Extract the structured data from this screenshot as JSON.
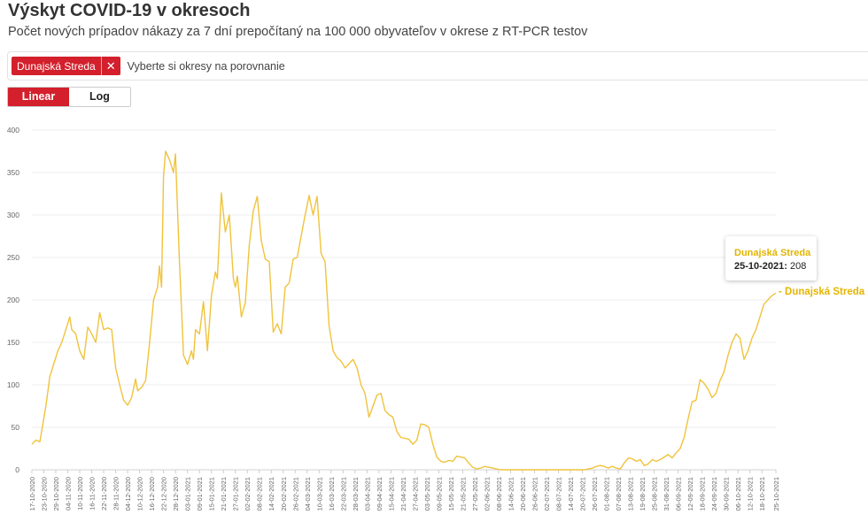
{
  "header": {
    "title": "Výskyt COVID-19 v okresoch",
    "subtitle": "Počet nových prípadov nákazy za 7 dní prepočítaný na 100 000 obyvateľov v okrese z RT-PCR testov"
  },
  "selector": {
    "selected_district": "Dunajská Streda",
    "remove_glyph": "✕",
    "placeholder": "Vyberte si okresy na porovnanie"
  },
  "scale_toggle": {
    "linear_label": "Linear",
    "log_label": "Log",
    "active": "linear"
  },
  "tooltip": {
    "series_name": "Dunajská Streda",
    "date": "25-10-2021",
    "value_text": "208"
  },
  "series_end_label": "- Dunajská Streda",
  "colors": {
    "series_line": "#f0c33c",
    "accent_red": "#d3202c",
    "grid": "#ececec"
  },
  "chart_data": {
    "type": "line",
    "title": "Výskyt COVID-19 v okresoch",
    "y_axis": {
      "min": 0,
      "max": 400,
      "ticks": [
        0,
        50,
        100,
        150,
        200,
        250,
        300,
        350,
        400
      ]
    },
    "x_tick_labels": [
      "17-10-2020",
      "23-10-2020",
      "29-10-2020",
      "04-11-2020",
      "10-11-2020",
      "16-11-2020",
      "22-11-2020",
      "28-11-2020",
      "04-12-2020",
      "10-12-2020",
      "16-12-2020",
      "22-12-2020",
      "28-12-2020",
      "03-01-2021",
      "09-01-2021",
      "15-01-2021",
      "21-01-2021",
      "27-01-2021",
      "02-02-2021",
      "08-02-2021",
      "14-02-2021",
      "20-02-2021",
      "26-02-2021",
      "04-03-2021",
      "10-03-2021",
      "16-03-2021",
      "22-03-2021",
      "28-03-2021",
      "03-04-2021",
      "09-04-2021",
      "15-04-2021",
      "21-04-2021",
      "27-04-2021",
      "03-05-2021",
      "09-05-2021",
      "15-05-2021",
      "21-05-2021",
      "27-05-2021",
      "02-06-2021",
      "08-06-2021",
      "14-06-2021",
      "20-06-2021",
      "26-06-2021",
      "02-07-2021",
      "08-07-2021",
      "14-07-2021",
      "20-07-2021",
      "26-07-2021",
      "01-08-2021",
      "07-08-2021",
      "13-08-2021",
      "19-08-2021",
      "25-08-2021",
      "31-08-2021",
      "06-09-2021",
      "12-09-2021",
      "18-09-2021",
      "24-09-2021",
      "30-09-2021",
      "06-10-2021",
      "12-10-2021",
      "18-10-2021",
      "25-10-2021"
    ],
    "grid": true,
    "series": [
      {
        "name": "Dunajská Streda",
        "points": [
          [
            "17-10-2020",
            30
          ],
          [
            "19-10-2020",
            35
          ],
          [
            "21-10-2020",
            33
          ],
          [
            "24-10-2020",
            75
          ],
          [
            "26-10-2020",
            110
          ],
          [
            "28-10-2020",
            125
          ],
          [
            "30-10-2020",
            140
          ],
          [
            "01-11-2020",
            150
          ],
          [
            "03-11-2020",
            165
          ],
          [
            "05-11-2020",
            180
          ],
          [
            "06-11-2020",
            165
          ],
          [
            "08-11-2020",
            160
          ],
          [
            "10-11-2020",
            140
          ],
          [
            "12-11-2020",
            130
          ],
          [
            "14-11-2020",
            168
          ],
          [
            "16-11-2020",
            160
          ],
          [
            "18-11-2020",
            150
          ],
          [
            "20-11-2020",
            185
          ],
          [
            "22-11-2020",
            165
          ],
          [
            "24-11-2020",
            167
          ],
          [
            "26-11-2020",
            165
          ],
          [
            "28-11-2020",
            120
          ],
          [
            "30-11-2020",
            100
          ],
          [
            "02-12-2020",
            82
          ],
          [
            "04-12-2020",
            76
          ],
          [
            "06-12-2020",
            85
          ],
          [
            "08-12-2020",
            107
          ],
          [
            "09-12-2020",
            93
          ],
          [
            "11-12-2020",
            97
          ],
          [
            "13-12-2020",
            105
          ],
          [
            "15-12-2020",
            150
          ],
          [
            "17-12-2020",
            200
          ],
          [
            "19-12-2020",
            215
          ],
          [
            "20-12-2020",
            240
          ],
          [
            "21-12-2020",
            215
          ],
          [
            "22-12-2020",
            345
          ],
          [
            "23-12-2020",
            375
          ],
          [
            "25-12-2020",
            365
          ],
          [
            "27-12-2020",
            350
          ],
          [
            "28-12-2020",
            372
          ],
          [
            "30-12-2020",
            245
          ],
          [
            "01-01-2021",
            135
          ],
          [
            "03-01-2021",
            124
          ],
          [
            "05-01-2021",
            140
          ],
          [
            "06-01-2021",
            130
          ],
          [
            "07-01-2021",
            165
          ],
          [
            "09-01-2021",
            160
          ],
          [
            "11-01-2021",
            198
          ],
          [
            "13-01-2021",
            140
          ],
          [
            "15-01-2021",
            205
          ],
          [
            "17-01-2021",
            233
          ],
          [
            "18-01-2021",
            225
          ],
          [
            "20-01-2021",
            326
          ],
          [
            "22-01-2021",
            280
          ],
          [
            "24-01-2021",
            300
          ],
          [
            "26-01-2021",
            225
          ],
          [
            "27-01-2021",
            215
          ],
          [
            "28-01-2021",
            228
          ],
          [
            "30-01-2021",
            180
          ],
          [
            "01-02-2021",
            197
          ],
          [
            "03-02-2021",
            265
          ],
          [
            "05-02-2021",
            305
          ],
          [
            "07-02-2021",
            322
          ],
          [
            "09-02-2021",
            270
          ],
          [
            "11-02-2021",
            248
          ],
          [
            "13-02-2021",
            245
          ],
          [
            "15-02-2021",
            162
          ],
          [
            "17-02-2021",
            172
          ],
          [
            "19-02-2021",
            160
          ],
          [
            "21-02-2021",
            215
          ],
          [
            "23-02-2021",
            220
          ],
          [
            "25-02-2021",
            248
          ],
          [
            "27-02-2021",
            250
          ],
          [
            "01-03-2021",
            275
          ],
          [
            "03-03-2021",
            300
          ],
          [
            "05-03-2021",
            323
          ],
          [
            "07-03-2021",
            300
          ],
          [
            "09-03-2021",
            322
          ],
          [
            "11-03-2021",
            255
          ],
          [
            "13-03-2021",
            245
          ],
          [
            "15-03-2021",
            170
          ],
          [
            "17-03-2021",
            140
          ],
          [
            "19-03-2021",
            132
          ],
          [
            "21-03-2021",
            128
          ],
          [
            "23-03-2021",
            120
          ],
          [
            "25-03-2021",
            125
          ],
          [
            "27-03-2021",
            130
          ],
          [
            "29-03-2021",
            120
          ],
          [
            "31-03-2021",
            100
          ],
          [
            "02-04-2021",
            90
          ],
          [
            "04-04-2021",
            62
          ],
          [
            "06-04-2021",
            75
          ],
          [
            "08-04-2021",
            88
          ],
          [
            "10-04-2021",
            90
          ],
          [
            "12-04-2021",
            70
          ],
          [
            "14-04-2021",
            65
          ],
          [
            "16-04-2021",
            62
          ],
          [
            "18-04-2021",
            45
          ],
          [
            "20-04-2021",
            38
          ],
          [
            "22-04-2021",
            37
          ],
          [
            "24-04-2021",
            36
          ],
          [
            "26-04-2021",
            30
          ],
          [
            "28-04-2021",
            35
          ],
          [
            "30-04-2021",
            54
          ],
          [
            "02-05-2021",
            53
          ],
          [
            "04-05-2021",
            50
          ],
          [
            "06-05-2021",
            30
          ],
          [
            "08-05-2021",
            15
          ],
          [
            "10-05-2021",
            10
          ],
          [
            "12-05-2021",
            9
          ],
          [
            "14-05-2021",
            11
          ],
          [
            "16-05-2021",
            10
          ],
          [
            "18-05-2021",
            16
          ],
          [
            "20-05-2021",
            15
          ],
          [
            "22-05-2021",
            14
          ],
          [
            "24-05-2021",
            8
          ],
          [
            "26-05-2021",
            3
          ],
          [
            "28-05-2021",
            1
          ],
          [
            "30-05-2021",
            2
          ],
          [
            "01-06-2021",
            4
          ],
          [
            "03-06-2021",
            3
          ],
          [
            "05-06-2021",
            2
          ],
          [
            "07-06-2021",
            1
          ],
          [
            "09-06-2021",
            0
          ],
          [
            "15-06-2021",
            0
          ],
          [
            "21-06-2021",
            0
          ],
          [
            "27-06-2021",
            0
          ],
          [
            "03-07-2021",
            0
          ],
          [
            "09-07-2021",
            0
          ],
          [
            "15-07-2021",
            0
          ],
          [
            "21-07-2021",
            0
          ],
          [
            "25-07-2021",
            2
          ],
          [
            "27-07-2021",
            4
          ],
          [
            "29-07-2021",
            5
          ],
          [
            "31-07-2021",
            4
          ],
          [
            "02-08-2021",
            2
          ],
          [
            "04-08-2021",
            4
          ],
          [
            "06-08-2021",
            2
          ],
          [
            "08-08-2021",
            1
          ],
          [
            "10-08-2021",
            8
          ],
          [
            "12-08-2021",
            14
          ],
          [
            "14-08-2021",
            13
          ],
          [
            "16-08-2021",
            10
          ],
          [
            "18-08-2021",
            12
          ],
          [
            "20-08-2021",
            5
          ],
          [
            "22-08-2021",
            7
          ],
          [
            "24-08-2021",
            12
          ],
          [
            "26-08-2021",
            10
          ],
          [
            "28-08-2021",
            12
          ],
          [
            "30-08-2021",
            15
          ],
          [
            "01-09-2021",
            18
          ],
          [
            "03-09-2021",
            14
          ],
          [
            "05-09-2021",
            20
          ],
          [
            "07-09-2021",
            25
          ],
          [
            "09-09-2021",
            38
          ],
          [
            "11-09-2021",
            60
          ],
          [
            "13-09-2021",
            80
          ],
          [
            "15-09-2021",
            82
          ],
          [
            "17-09-2021",
            106
          ],
          [
            "19-09-2021",
            102
          ],
          [
            "21-09-2021",
            95
          ],
          [
            "23-09-2021",
            85
          ],
          [
            "25-09-2021",
            90
          ],
          [
            "27-09-2021",
            105
          ],
          [
            "29-09-2021",
            115
          ],
          [
            "01-10-2021",
            135
          ],
          [
            "03-10-2021",
            150
          ],
          [
            "05-10-2021",
            160
          ],
          [
            "07-10-2021",
            155
          ],
          [
            "09-10-2021",
            130
          ],
          [
            "11-10-2021",
            140
          ],
          [
            "13-10-2021",
            155
          ],
          [
            "15-10-2021",
            165
          ],
          [
            "17-10-2021",
            180
          ],
          [
            "19-10-2021",
            195
          ],
          [
            "21-10-2021",
            200
          ],
          [
            "23-10-2021",
            205
          ],
          [
            "25-10-2021",
            208
          ]
        ]
      }
    ],
    "legend": "inline label at end of line"
  }
}
